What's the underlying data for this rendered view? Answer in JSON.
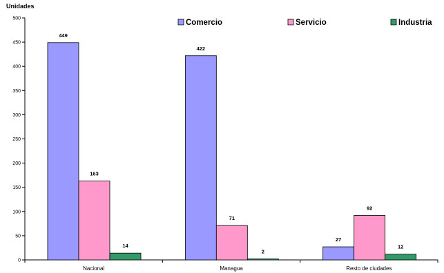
{
  "chart_data": {
    "type": "bar",
    "title": "",
    "ylabel": "Unidades",
    "xlabel": "",
    "ylim": [
      0,
      500
    ],
    "yticks": [
      0,
      50,
      100,
      150,
      200,
      250,
      300,
      350,
      400,
      450,
      500
    ],
    "categories": [
      "Nacional",
      "Managua",
      "Resto de ciudades"
    ],
    "series": [
      {
        "name": "Comercio",
        "values": [
          449,
          422,
          27
        ],
        "color": "#9999ff"
      },
      {
        "name": "Servicio",
        "values": [
          163,
          71,
          92
        ],
        "color": "#ff99cc"
      },
      {
        "name": "Industria",
        "values": [
          14,
          2,
          12
        ],
        "color": "#339966"
      }
    ],
    "legend_position": "top-right",
    "grid": false,
    "data_labels": true
  }
}
